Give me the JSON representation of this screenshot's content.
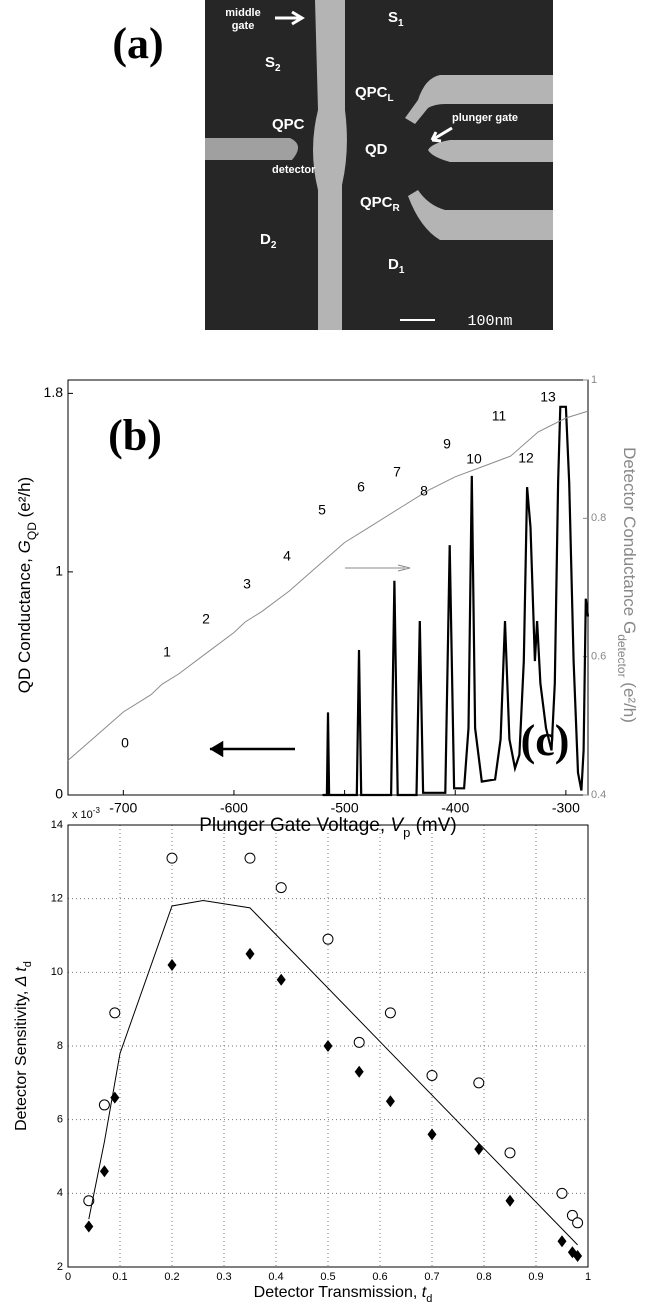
{
  "micrograph": {
    "panel_label": "(a)",
    "labels": {
      "middle_gate": [
        "middle",
        "gate"
      ],
      "s1": {
        "text": "S",
        "sub": "1"
      },
      "s2": {
        "text": "S",
        "sub": "2"
      },
      "qpc_l": {
        "text": "QPC",
        "sub": "L"
      },
      "qpc": "QPC",
      "qd": "QD",
      "plunger_gate": "plunger gate",
      "detector": "detector",
      "qpc_r": {
        "text": "QPC",
        "sub": "R"
      },
      "d2": {
        "text": "D",
        "sub": "2"
      },
      "d1": {
        "text": "D",
        "sub": "1"
      },
      "scale": "100nm"
    }
  },
  "chart_data": [
    {
      "type": "line",
      "title": "(b)",
      "xlabel": {
        "text": "Plunger Gate Voltage, ",
        "var": "V",
        "sub": "p",
        "unit": " (mV)"
      },
      "ylabel": {
        "text": "QD Conductance, ",
        "var": "G",
        "sub": "QD",
        "unit": " (e²/h)"
      },
      "y2label": {
        "text": "Detector Conductance G",
        "sub": "detector",
        "unit": "  (e²/h)"
      },
      "xlim": [
        -750,
        -280
      ],
      "xticks": [
        -700,
        -600,
        -500,
        -400,
        -300
      ],
      "ylim": [
        0,
        1.86
      ],
      "yticks": [
        0,
        1,
        1.8
      ],
      "y2lim": [
        0.4,
        1
      ],
      "y2ticks": [
        0.4,
        0.6,
        0.8,
        1
      ],
      "annotations": [
        "0",
        "1",
        "2",
        "3",
        "4",
        "5",
        "6",
        "7",
        "8",
        "9",
        "10",
        "11",
        "12",
        "13"
      ],
      "series": [
        {
          "color": "#000000",
          "axis": "y",
          "x": [
            -520,
            -516,
            -515,
            -514,
            -489,
            -487,
            -485,
            -458,
            -455,
            -452,
            -435,
            -432,
            -429,
            -409,
            -405,
            -401,
            -392,
            -388,
            -385,
            -382,
            -376,
            -364,
            -359,
            -355,
            -351,
            -346,
            -342,
            -338,
            -335,
            -332,
            -328,
            -326,
            -323,
            -318,
            -313,
            -310,
            -307,
            -305,
            -300,
            -297,
            -293,
            -289,
            -286,
            -284,
            -282,
            -280
          ],
          "values": [
            0,
            0,
            0.37,
            0,
            0,
            0.65,
            0,
            0,
            0.96,
            0,
            0,
            0.78,
            0.01,
            0.01,
            1.12,
            0.03,
            0.03,
            0.3,
            1.43,
            0.3,
            0.06,
            0.07,
            0.25,
            0.78,
            0.25,
            0.12,
            0.18,
            0.6,
            1.38,
            1.2,
            0.6,
            0.78,
            0.5,
            0.3,
            0.2,
            0.5,
            1.4,
            1.74,
            1.74,
            1.4,
            0.6,
            0.1,
            0.02,
            0.2,
            0.88,
            0.8
          ]
        },
        {
          "color": "#8c8c8c",
          "axis": "y2",
          "x": [
            -750,
            -725,
            -700,
            -675,
            -665,
            -650,
            -625,
            -600,
            -590,
            -575,
            -550,
            -525,
            -500,
            -475,
            -450,
            -425,
            -400,
            -375,
            -350,
            -325,
            -300,
            -280
          ],
          "values": [
            0.45,
            0.485,
            0.52,
            0.545,
            0.56,
            0.575,
            0.605,
            0.635,
            0.65,
            0.665,
            0.695,
            0.73,
            0.765,
            0.79,
            0.815,
            0.84,
            0.86,
            0.875,
            0.89,
            0.925,
            0.945,
            0.955
          ]
        }
      ]
    },
    {
      "type": "scatter",
      "title": "(c)",
      "xlabel": {
        "text": "Detector Transmission, ",
        "var": "t",
        "sub": "d"
      },
      "ylabel": {
        "text": "Detector Sensitivity, ",
        "var": "Δ t",
        "sub": "d"
      },
      "y_exponent": {
        "text": "x 10",
        "sup": "-3"
      },
      "xlim": [
        0,
        1
      ],
      "xticks": [
        0,
        0.1,
        0.2,
        0.3,
        0.4,
        0.5,
        0.6,
        0.7,
        0.8,
        0.9,
        1
      ],
      "ylim": [
        2,
        14
      ],
      "yticks": [
        2,
        4,
        6,
        8,
        10,
        12,
        14
      ],
      "grid": true,
      "series": [
        {
          "marker": "circle",
          "color": "#000000",
          "x": [
            0.04,
            0.07,
            0.09,
            0.2,
            0.35,
            0.41,
            0.5,
            0.56,
            0.62,
            0.7,
            0.79,
            0.85,
            0.95,
            0.97,
            0.98
          ],
          "values": [
            3.8,
            6.4,
            8.9,
            13.1,
            13.1,
            12.3,
            10.9,
            8.1,
            8.9,
            7.2,
            7.0,
            5.1,
            4.0,
            3.4,
            3.2
          ]
        },
        {
          "marker": "diamond",
          "color": "#000000",
          "x": [
            0.04,
            0.07,
            0.09,
            0.2,
            0.35,
            0.41,
            0.5,
            0.56,
            0.62,
            0.7,
            0.79,
            0.85,
            0.95,
            0.97,
            0.98
          ],
          "values": [
            3.1,
            4.6,
            6.6,
            10.2,
            10.5,
            9.8,
            8.0,
            7.3,
            6.5,
            5.6,
            5.2,
            3.8,
            2.7,
            2.4,
            2.3
          ]
        },
        {
          "marker": "line",
          "color": "#000000",
          "x": [
            0.04,
            0.07,
            0.1,
            0.2,
            0.26,
            0.35,
            0.98
          ],
          "values": [
            3.3,
            5.4,
            7.8,
            11.8,
            11.95,
            11.75,
            2.6
          ]
        }
      ]
    }
  ]
}
